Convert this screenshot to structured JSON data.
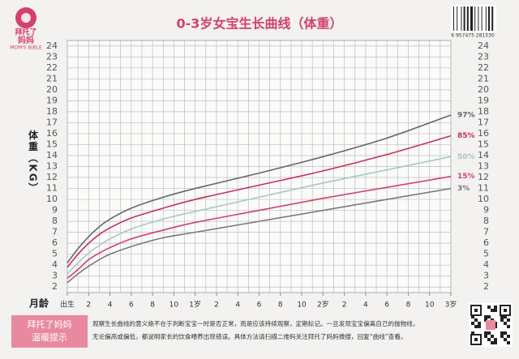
{
  "chart_data": {
    "type": "line",
    "title": "0-3岁女宝生长曲线（体重）",
    "logo": {
      "line1": "拜托了",
      "line2": "妈妈",
      "line3": "MOM'S BIBLE"
    },
    "barcode_number": "6 957475 281530",
    "x_label": "月龄",
    "y_label": "体重（KG）",
    "x": [
      0,
      1,
      2,
      3,
      4,
      6,
      9,
      12,
      18,
      24,
      30,
      36
    ],
    "xlim": [
      0,
      36
    ],
    "xticks": [
      {
        "value": 0,
        "label": "出生"
      },
      2,
      4,
      6,
      8,
      10,
      {
        "value": 12,
        "label": "1岁"
      },
      {
        "value": 14,
        "label": "2"
      },
      {
        "value": 16,
        "label": "4"
      },
      {
        "value": 18,
        "label": "6"
      },
      {
        "value": 20,
        "label": "8"
      },
      {
        "value": 22,
        "label": "10"
      },
      {
        "value": 24,
        "label": "2岁"
      },
      {
        "value": 26,
        "label": "2"
      },
      {
        "value": 28,
        "label": "4"
      },
      {
        "value": 30,
        "label": "6"
      },
      {
        "value": 32,
        "label": "8"
      },
      {
        "value": 34,
        "label": "10"
      },
      {
        "value": 36,
        "label": "3岁"
      }
    ],
    "ylim": [
      1.5,
      24.5
    ],
    "yticks": [
      2,
      3,
      4,
      5,
      6,
      7,
      8,
      9,
      10,
      11,
      12,
      13,
      14,
      15,
      16,
      17,
      18,
      19,
      20,
      21,
      22,
      23,
      24
    ],
    "grid": true,
    "series": [
      {
        "name": "97%",
        "color": "#66646e",
        "values": [
          4.2,
          5.5,
          6.6,
          7.5,
          8.2,
          9.2,
          10.2,
          11.0,
          12.4,
          13.9,
          15.6,
          17.7
        ]
      },
      {
        "name": "85%",
        "color": "#c4305c",
        "values": [
          3.8,
          5.0,
          6.0,
          6.8,
          7.4,
          8.3,
          9.2,
          10.0,
          11.3,
          12.6,
          14.1,
          15.8
        ]
      },
      {
        "name": "50%",
        "color": "#a9c8c0",
        "values": [
          3.2,
          4.2,
          5.1,
          5.8,
          6.4,
          7.3,
          8.2,
          8.9,
          10.2,
          11.5,
          12.7,
          13.9
        ]
      },
      {
        "name": "15%",
        "color": "#d4406c",
        "values": [
          2.8,
          3.6,
          4.5,
          5.1,
          5.6,
          6.4,
          7.2,
          7.9,
          9.0,
          10.1,
          11.1,
          12.1
        ]
      },
      {
        "name": "3%",
        "color": "#7a7880",
        "values": [
          2.4,
          3.2,
          3.9,
          4.5,
          5.0,
          5.7,
          6.5,
          7.0,
          8.0,
          9.0,
          10.0,
          11.0
        ]
      }
    ],
    "footer": {
      "tip_line1": "拜托了妈妈",
      "tip_line2": "温暖提示",
      "text_line1": "观察生长曲线的意义绝不在于判断宝宝一时是否正常，而是应该持续观察，定期标记。一旦发现宝宝偏离自己的抛物线，",
      "text_line2": "无论偏高或偏低，都说明家长的饮食喂养出现错误。具体方法请扫描二维码关注拜托了妈妈微搜，回复“曲线”查看。"
    }
  }
}
